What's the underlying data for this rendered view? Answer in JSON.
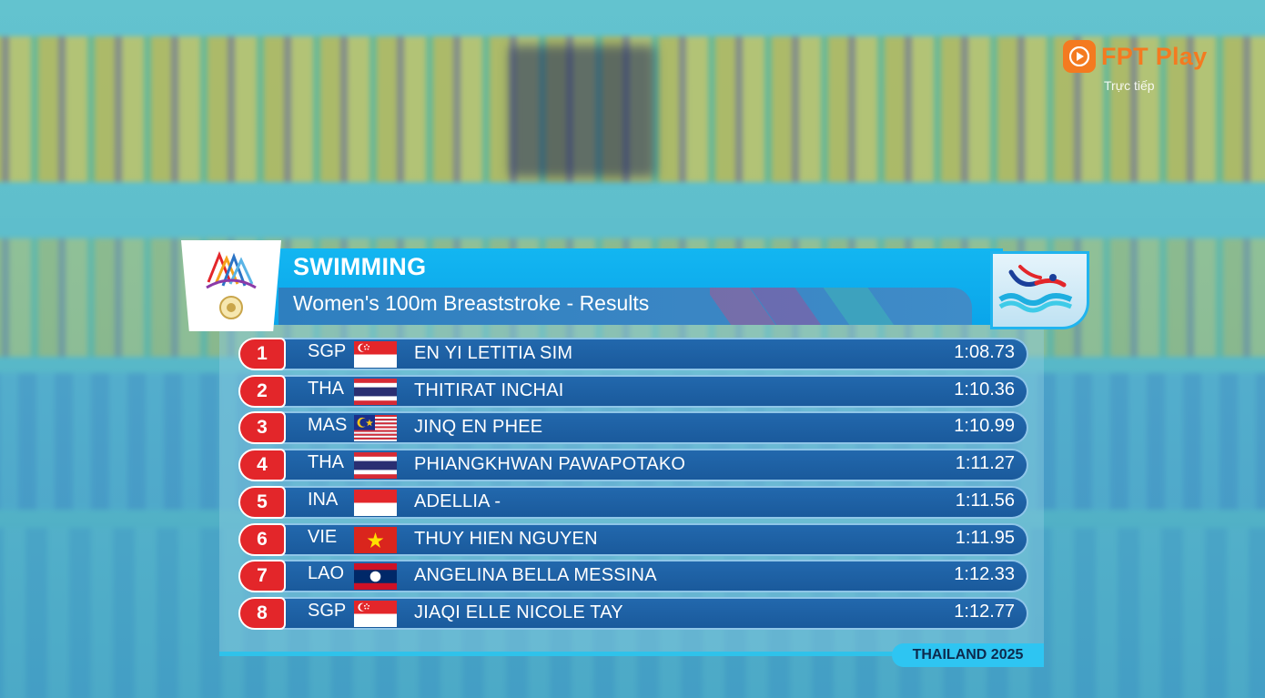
{
  "brand": {
    "name": "FPT Play",
    "subtitle": "Trực tiếp",
    "color": "#f47a20"
  },
  "header": {
    "sport": "SWIMMING",
    "event": "Women's 100m Breaststroke - Results",
    "games_logo_icon": "sea-games-logo-icon",
    "sport_icon": "swimming-pictogram-icon"
  },
  "results": [
    {
      "rank": "1",
      "code": "SGP",
      "flag": "singapore",
      "name": "EN YI LETITIA SIM",
      "time": "1:08.73"
    },
    {
      "rank": "2",
      "code": "THA",
      "flag": "thailand",
      "name": "THITIRAT INCHAI",
      "time": "1:10.36"
    },
    {
      "rank": "3",
      "code": "MAS",
      "flag": "malaysia",
      "name": "JINQ EN PHEE",
      "time": "1:10.99"
    },
    {
      "rank": "4",
      "code": "THA",
      "flag": "thailand",
      "name": "PHIANGKHWAN PAWAPOTAKO",
      "time": "1:11.27"
    },
    {
      "rank": "5",
      "code": "INA",
      "flag": "indonesia",
      "name": "ADELLIA -",
      "time": "1:11.56"
    },
    {
      "rank": "6",
      "code": "VIE",
      "flag": "vietnam",
      "name": "THUY HIEN NGUYEN",
      "time": "1:11.95"
    },
    {
      "rank": "7",
      "code": "LAO",
      "flag": "laos",
      "name": "ANGELINA BELLA MESSINA",
      "time": "1:12.33"
    },
    {
      "rank": "8",
      "code": "SGP",
      "flag": "singapore",
      "name": "JIAQI ELLE NICOLE TAY",
      "time": "1:12.77"
    }
  ],
  "footer": {
    "tag": "THAILAND 2025"
  },
  "colors": {
    "rank_badge": "#e3262a",
    "row": "#1f62a6",
    "header": "#0aa5ea"
  }
}
